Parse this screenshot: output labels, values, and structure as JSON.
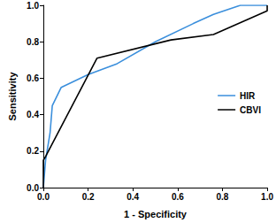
{
  "chart_data": {
    "type": "line",
    "x_label": "1 - Specificity",
    "y_label": "Sensitivity",
    "xlim": [
      0,
      1
    ],
    "ylim": [
      0,
      1
    ],
    "xticks": [
      {
        "value": 0,
        "label": "0.0"
      },
      {
        "value": 0.2,
        "label": "0.2"
      },
      {
        "value": 0.4,
        "label": "0.4"
      },
      {
        "value": 0.6,
        "label": "0.6"
      },
      {
        "value": 0.8,
        "label": "0.8"
      },
      {
        "value": 1,
        "label": "1.0"
      }
    ],
    "yticks": [
      {
        "value": 0,
        "label": "0.0"
      },
      {
        "value": 0.2,
        "label": "0.2"
      },
      {
        "value": 0.4,
        "label": "0.4"
      },
      {
        "value": 0.6,
        "label": "0.6"
      },
      {
        "value": 0.8,
        "label": "0.8"
      },
      {
        "value": 1,
        "label": "1.0"
      }
    ],
    "grid": false,
    "legend": "right",
    "series": [
      {
        "name": "HIR",
        "color": "#3b8fdc",
        "x": [
          0,
          0.01,
          0.03,
          0.04,
          0.08,
          0.2,
          0.33,
          0.5,
          0.67,
          0.76,
          0.88,
          1.0
        ],
        "values": [
          0,
          0.15,
          0.3,
          0.45,
          0.55,
          0.62,
          0.68,
          0.8,
          0.9,
          0.95,
          1.0,
          1.0
        ]
      },
      {
        "name": "CBVI",
        "color": "#000000",
        "x": [
          0,
          0,
          0.01,
          0.24,
          0.57,
          0.76,
          1.0,
          1.0
        ],
        "values": [
          0,
          0.15,
          0.17,
          0.71,
          0.81,
          0.84,
          0.97,
          1.0
        ]
      }
    ]
  }
}
